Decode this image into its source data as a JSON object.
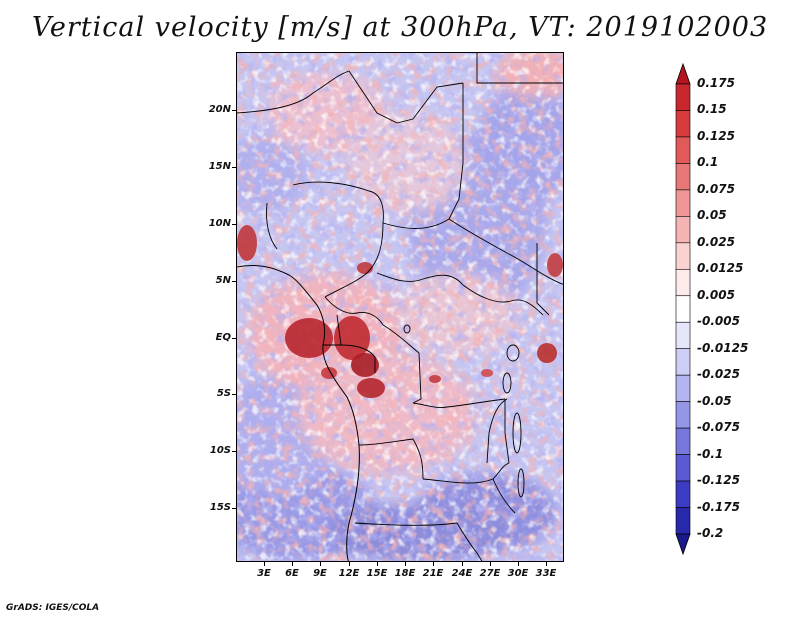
{
  "title": "Vertical velocity [m/s] at 300hPa, VT: 2019102003",
  "credit": "GrADS: IGES/COLA",
  "map": {
    "lat_labels": [
      "20N",
      "15N",
      "10N",
      "5N",
      "EQ",
      "5S",
      "10S",
      "15S"
    ],
    "lon_labels": [
      "3E",
      "6E",
      "9E",
      "12E",
      "15E",
      "18E",
      "21E",
      "24E",
      "27E",
      "30E",
      "33E"
    ],
    "field": "vertical velocity",
    "level": "300hPa",
    "valid_time": "2019102003"
  },
  "colorbar": {
    "labels": [
      "0.175",
      "0.15",
      "0.125",
      "0.1",
      "0.075",
      "0.05",
      "0.025",
      "0.0125",
      "0.005",
      "-0.005",
      "-0.0125",
      "-0.025",
      "-0.05",
      "-0.075",
      "-0.1",
      "-0.125",
      "-0.175",
      "-0.2"
    ],
    "colors": [
      "#b4141e",
      "#c8282d",
      "#d73c3c",
      "#e15a5a",
      "#e87878",
      "#f09696",
      "#f5b4b4",
      "#fad2d2",
      "#fdeaea",
      "#ffffff",
      "#e6e6fa",
      "#cdcdf5",
      "#b4b4f0",
      "#9696e6",
      "#7878dc",
      "#5a5ad2",
      "#3c3cc3",
      "#2828aa",
      "#1a1a8c"
    ]
  }
}
